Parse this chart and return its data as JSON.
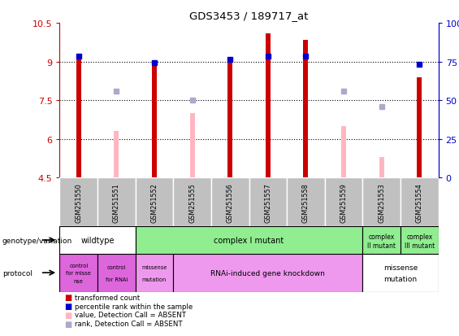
{
  "title": "GDS3453 / 189717_at",
  "samples": [
    "GSM251550",
    "GSM251551",
    "GSM251552",
    "GSM251555",
    "GSM251556",
    "GSM251557",
    "GSM251558",
    "GSM251559",
    "GSM251553",
    "GSM251554"
  ],
  "red_values": [
    9.3,
    null,
    8.85,
    null,
    9.05,
    10.1,
    9.85,
    null,
    null,
    8.4
  ],
  "pink_values": [
    null,
    6.3,
    null,
    7.0,
    null,
    null,
    null,
    6.5,
    5.3,
    null
  ],
  "blue_values": [
    9.2,
    null,
    8.95,
    null,
    9.08,
    9.22,
    9.22,
    null,
    null,
    8.88
  ],
  "lightblue_values": [
    null,
    7.85,
    null,
    7.5,
    null,
    null,
    null,
    7.85,
    7.25,
    null
  ],
  "ylim": [
    4.5,
    10.5
  ],
  "y2lim": [
    0,
    100
  ],
  "yticks": [
    4.5,
    6.0,
    7.5,
    9.0,
    10.5
  ],
  "y2ticks": [
    0,
    25,
    50,
    75,
    100
  ],
  "dotted_lines": [
    6.0,
    7.5,
    9.0
  ],
  "colors": {
    "red": "#CC0000",
    "pink": "#FFB6C1",
    "blue": "#0000CC",
    "lightblue": "#AAAACC",
    "wildtype_bg": "#FFFFFF",
    "complex_I_bg": "#90EE90",
    "complex_II_bg": "#90EE90",
    "complex_III_bg": "#90EE90",
    "protocol_purple": "#DD66DD",
    "protocol_pink": "#EE99EE",
    "protocol_white": "#FFFFFF",
    "sample_bg": "#C0C0C0",
    "axis_red": "#CC0000",
    "axis_blue": "#0000CC"
  },
  "legend_items": [
    {
      "label": "transformed count",
      "color": "#CC0000"
    },
    {
      "label": "percentile rank within the sample",
      "color": "#0000CC"
    },
    {
      "label": "value, Detection Call = ABSENT",
      "color": "#FFB6C1"
    },
    {
      "label": "rank, Detection Call = ABSENT",
      "color": "#AAAACC"
    }
  ]
}
